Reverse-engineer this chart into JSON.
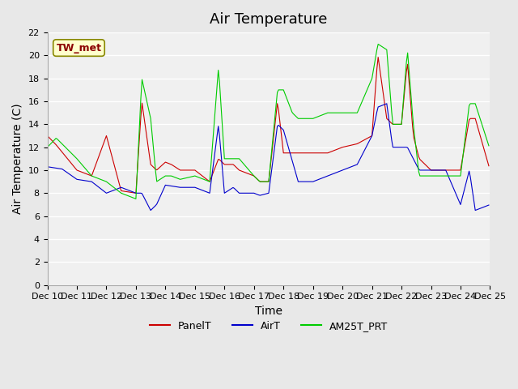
{
  "title": "Air Temperature",
  "ylabel": "Air Temperature (C)",
  "xlabel": "Time",
  "annotation_label": "TW_met",
  "annotation_color": "#8B0000",
  "annotation_bg": "#FFFFCC",
  "legend_entries": [
    "PanelT",
    "AirT",
    "AM25T_PRT"
  ],
  "line_colors": [
    "#CC0000",
    "#0000CC",
    "#00CC00"
  ],
  "ylim": [
    0,
    22
  ],
  "yticks": [
    0,
    2,
    4,
    6,
    8,
    10,
    12,
    14,
    16,
    18,
    20,
    22
  ],
  "xtick_labels": [
    "Dec 10",
    "Dec 11",
    "Dec 12",
    "Dec 13",
    "Dec 14",
    "Dec 15",
    "Dec 16",
    "Dec 17",
    "Dec 18",
    "Dec 19",
    "Dec 20",
    "Dec 21",
    "Dec 22",
    "Dec 23",
    "Dec 24",
    "Dec 25"
  ],
  "bg_color": "#E8E8E8",
  "plot_bg": "#F0F0F0",
  "grid_color": "#FFFFFF",
  "title_fontsize": 13,
  "axis_label_fontsize": 10,
  "tick_fontsize": 8
}
